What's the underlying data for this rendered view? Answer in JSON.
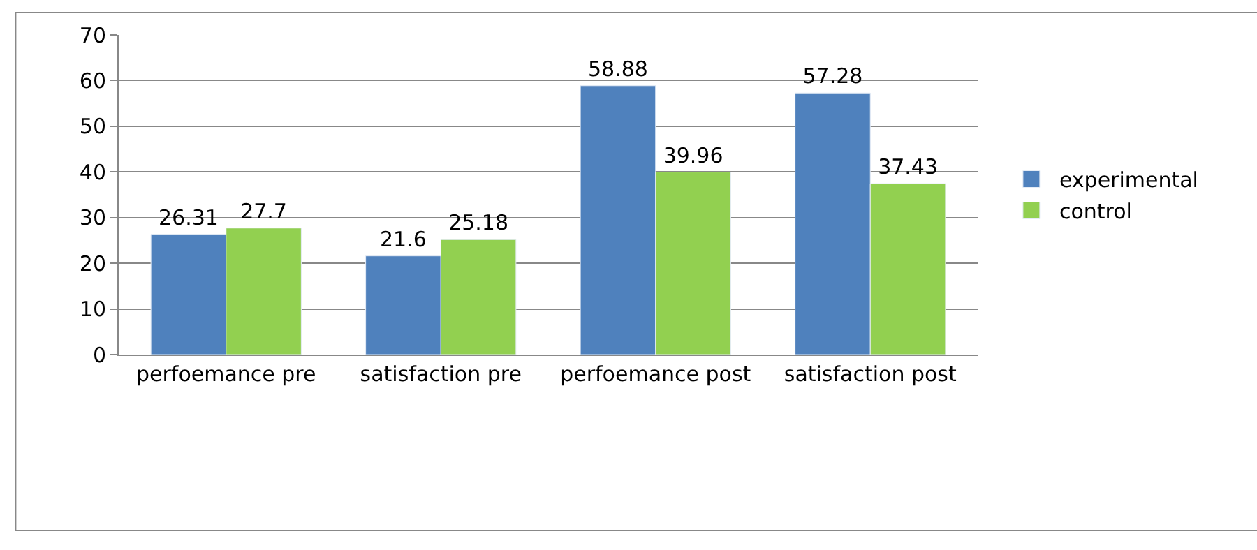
{
  "chart_data": {
    "type": "bar",
    "categories": [
      "perfoemance pre",
      "satisfaction pre",
      "perfoemance post",
      "satisfaction post"
    ],
    "series": [
      {
        "name": "experimental",
        "color": "#4f81bd",
        "values": [
          26.31,
          21.6,
          58.88,
          57.28
        ]
      },
      {
        "name": "control",
        "color": "#92d050",
        "values": [
          27.7,
          25.18,
          39.96,
          37.43
        ]
      }
    ],
    "ylim": [
      0,
      70
    ],
    "yticks": [
      0,
      10,
      20,
      30,
      40,
      50,
      60,
      70
    ],
    "grid": "y",
    "legend": "right",
    "data_labels": true
  }
}
